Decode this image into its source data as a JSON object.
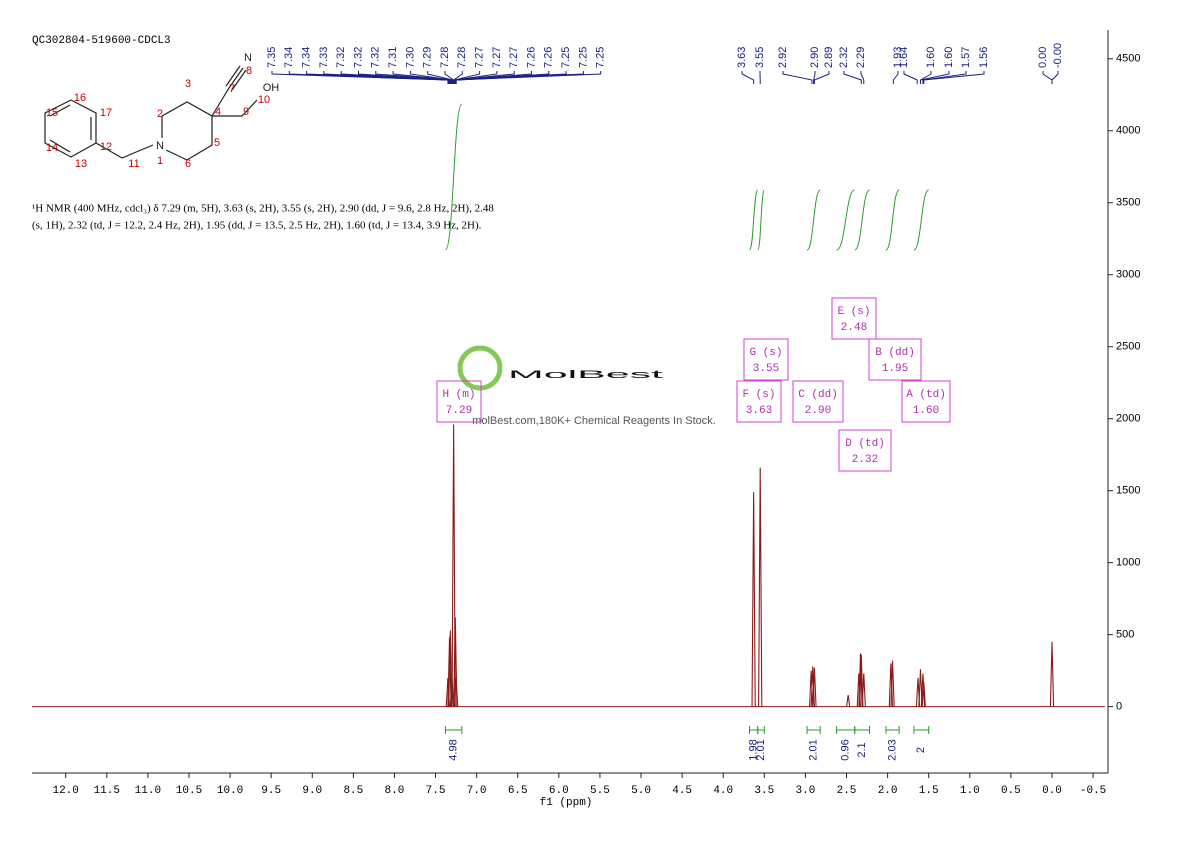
{
  "chart_data": {
    "type": "nmr",
    "title": "QC302804-519600-CDCL3",
    "x_label": "f1 (ppm)",
    "description": [
      "¹H NMR (400 MHz, cdcl₃) δ 7.29 (m, 5H), 3.63 (s, 2H), 3.55 (s, 2H), 2.90 (dd, J = 9.6, 2.8 Hz, 2H), 2.48",
      "(s, 1H), 2.32 (td, J = 12.2, 2.4 Hz, 2H), 1.95 (dd, J = 13.5, 2.5 Hz, 2H), 1.60 (td, J = 13.4, 3.9 Hz, 2H)."
    ],
    "watermark": "MolBest",
    "watermark_subtitle": "molBest.com,180K+ Chemical Reagents In Stock.",
    "color": "#8b1a1a",
    "xlim": [
      12.41,
      -0.645
    ],
    "ylim": [
      -440,
      4700
    ],
    "xticks": [
      {
        "value": 12,
        "label": "12.0"
      },
      {
        "value": 11.5,
        "label": "11.5"
      },
      {
        "value": 11,
        "label": "11.0"
      },
      {
        "value": 10.5,
        "label": "10.5"
      },
      {
        "value": 10,
        "label": "10.0"
      },
      {
        "value": 9.5,
        "label": "9.5"
      },
      {
        "value": 9,
        "label": "9.0"
      },
      {
        "value": 8.5,
        "label": "8.5"
      },
      {
        "value": 8,
        "label": "8.0"
      },
      {
        "value": 7.5,
        "label": "7.5"
      },
      {
        "value": 7,
        "label": "7.0"
      },
      {
        "value": 6.5,
        "label": "6.5"
      },
      {
        "value": 6,
        "label": "6.0"
      },
      {
        "value": 5.5,
        "label": "5.5"
      },
      {
        "value": 5,
        "label": "5.0"
      },
      {
        "value": 4.5,
        "label": "4.5"
      },
      {
        "value": 4,
        "label": "4.0"
      },
      {
        "value": 3.5,
        "label": "3.5"
      },
      {
        "value": 3,
        "label": "3.0"
      },
      {
        "value": 2.5,
        "label": "2.5"
      },
      {
        "value": 2,
        "label": "2.0"
      },
      {
        "value": 1.5,
        "label": "1.5"
      },
      {
        "value": 1,
        "label": "1.0"
      },
      {
        "value": 0.5,
        "label": "0.5"
      },
      {
        "value": 0,
        "label": "0.0"
      },
      {
        "value": -0.5,
        "label": "-0.5"
      }
    ],
    "yticks": [
      0,
      500,
      1000,
      1500,
      2000,
      2500,
      3000,
      3500,
      4000,
      4500
    ],
    "peaks": {
      "x": [
        7.35,
        7.33,
        7.32,
        7.3,
        7.28,
        7.26,
        7.25,
        3.63,
        3.55,
        2.93,
        2.91,
        2.89,
        2.48,
        2.35,
        2.33,
        2.32,
        2.29,
        1.96,
        1.94,
        1.63,
        1.6,
        1.57,
        1.56,
        0.0
      ],
      "values": [
        200,
        480,
        530,
        200,
        1960,
        620,
        200,
        1490,
        1660,
        250,
        280,
        270,
        80,
        230,
        370,
        360,
        230,
        300,
        320,
        200,
        260,
        230,
        170,
        450
      ]
    },
    "peak_labels": [
      "7.35",
      "7.34",
      "7.34",
      "7.33",
      "7.32",
      "7.32",
      "7.32",
      "7.31",
      "7.30",
      "7.29",
      "7.28",
      "7.28",
      "7.27",
      "7.27",
      "7.27",
      "7.26",
      "7.26",
      "7.25",
      "7.25",
      "7.25",
      "3.63",
      "3.55",
      "2.92",
      "2.90",
      "2.89",
      "2.32",
      "2.29",
      "1.93",
      "1.64",
      "1.60",
      "1.60",
      "1.57",
      "1.56",
      "0.00",
      "-0.00"
    ],
    "integrals": {
      "values": [
        4.98,
        1.98,
        2.01,
        2.01,
        0.96,
        2.1,
        2.03,
        2.0
      ],
      "ranges": [
        [
          7.38,
          7.18
        ],
        [
          3.68,
          3.58
        ],
        [
          3.58,
          3.5
        ],
        [
          2.98,
          2.82
        ],
        [
          2.62,
          2.4
        ],
        [
          2.4,
          2.22
        ],
        [
          2.02,
          1.86
        ],
        [
          1.68,
          1.5
        ]
      ]
    },
    "multiplets": [
      {
        "label": "H (m)",
        "shift": "7.29"
      },
      {
        "label": "G (s)",
        "shift": "3.55"
      },
      {
        "label": "F (s)",
        "shift": "3.63"
      },
      {
        "label": "E (s)",
        "shift": "2.48"
      },
      {
        "label": "C (dd)",
        "shift": "2.90"
      },
      {
        "label": "B (dd)",
        "shift": "1.95"
      },
      {
        "label": "A (td)",
        "shift": "1.60"
      },
      {
        "label": "D (td)",
        "shift": "2.32"
      }
    ],
    "structure_labels": [
      "N",
      "8",
      "7",
      "OH",
      "10",
      "9",
      "4",
      "3",
      "2",
      "5",
      "6",
      "N",
      "1",
      "11",
      "12",
      "13",
      "14",
      "15",
      "16",
      "17"
    ]
  }
}
